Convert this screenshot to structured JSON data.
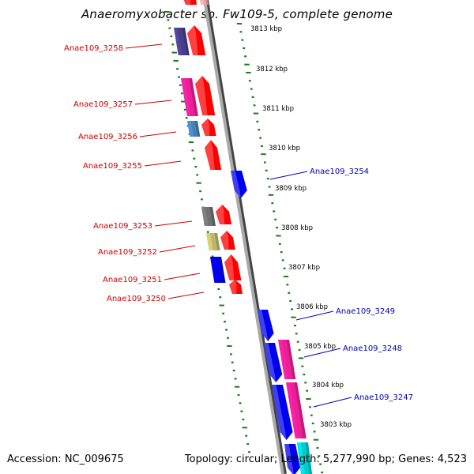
{
  "title": "Anaeromyxobacter sp. Fw109-5, complete genome",
  "accession": "Accession: NC_009675",
  "topology": "Topology: circular; Length: 5,277,990 bp; Genes: 4,523",
  "colors": {
    "reverse_label": "#cc0000",
    "forward_label": "#0000bb",
    "ruler_dash": "#1a7a1a",
    "backbone": "#888888"
  },
  "scale": {
    "ticks": [
      {
        "label": "3813 kbp"
      },
      {
        "label": "3812 kbp"
      },
      {
        "label": "3811 kbp"
      },
      {
        "label": "3810 kbp"
      },
      {
        "label": "3809 kbp"
      },
      {
        "label": "3808 kbp"
      },
      {
        "label": "3807 kbp"
      },
      {
        "label": "3806 kbp"
      },
      {
        "label": "3805 kbp"
      },
      {
        "label": "3804 kbp"
      },
      {
        "label": "3803 kbp"
      }
    ]
  },
  "genes": [
    {
      "id": "Anae109_3258",
      "strand": "reverse",
      "cog_color": "#483d8b",
      "label_color": "#cc0000"
    },
    {
      "id": "Anae109_3257",
      "strand": "reverse",
      "cog_color": "#ee1e96",
      "label_color": "#cc0000"
    },
    {
      "id": "Anae109_3256",
      "strand": "reverse",
      "cog_color": "#4682b4",
      "label_color": "#cc0000"
    },
    {
      "id": "Anae109_3255",
      "strand": "reverse",
      "cog_color": "",
      "label_color": "#cc0000"
    },
    {
      "id": "Anae109_3254",
      "strand": "forward",
      "cog_color": "",
      "label_color": "#0000bb"
    },
    {
      "id": "Anae109_3253",
      "strand": "reverse",
      "cog_color": "#707070",
      "label_color": "#cc0000"
    },
    {
      "id": "Anae109_3252",
      "strand": "reverse",
      "cog_color": "#bdb76b",
      "label_color": "#cc0000"
    },
    {
      "id": "Anae109_3251",
      "strand": "reverse",
      "cog_color": "#0000ee",
      "label_color": "#cc0000"
    },
    {
      "id": "Anae109_3250",
      "strand": "reverse",
      "cog_color": "",
      "label_color": "#cc0000"
    },
    {
      "id": "Anae109_3249",
      "strand": "forward",
      "cog_color": "",
      "label_color": "#0000bb"
    },
    {
      "id": "Anae109_3248",
      "strand": "forward",
      "cog_color": "#ee1e96",
      "label_color": "#0000bb"
    },
    {
      "id": "Anae109_3247",
      "strand": "forward",
      "cog_color": "#ee1e96",
      "label_color": "#0000bb"
    }
  ]
}
